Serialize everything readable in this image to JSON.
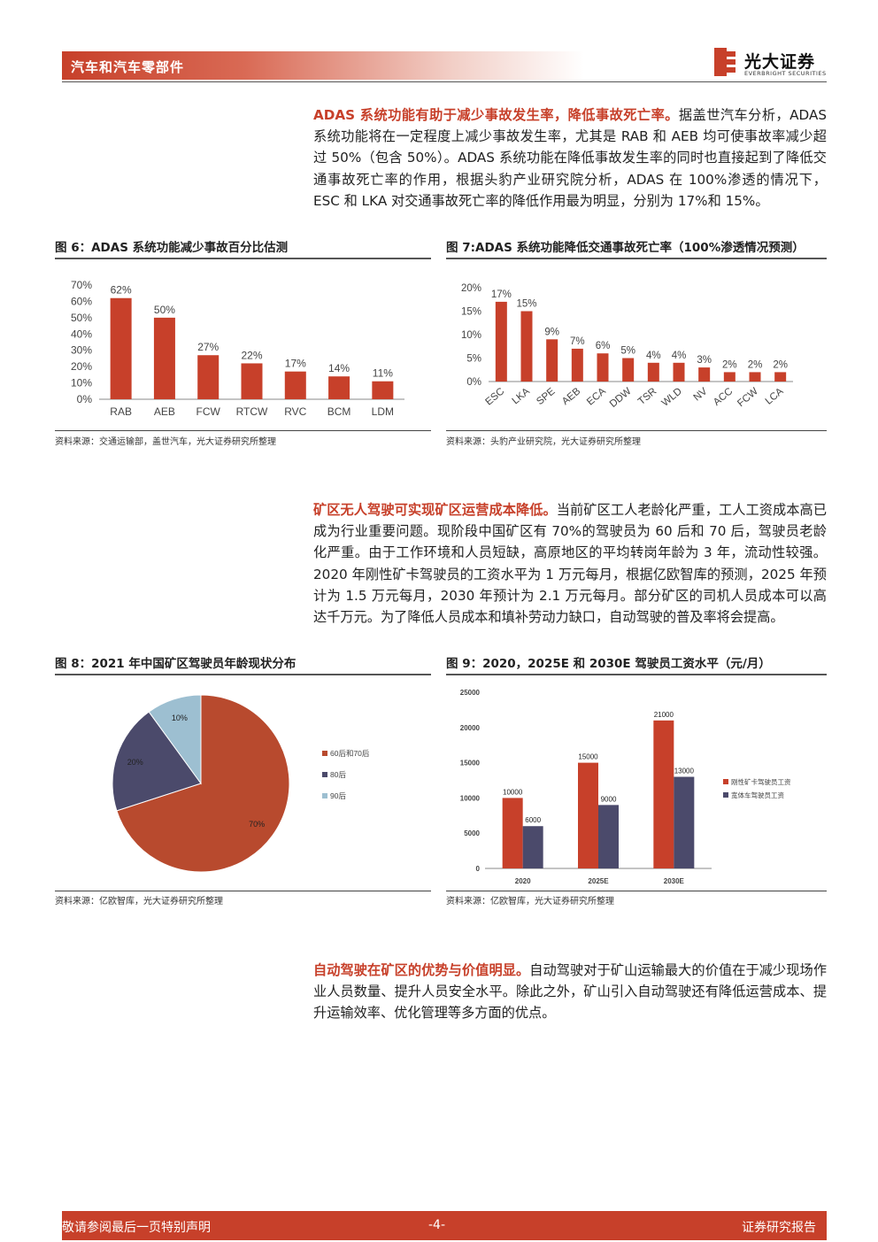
{
  "header": {
    "section": "汽车和汽车零部件",
    "logo_cn": "光大证券",
    "logo_en": "EVERBRIGHT SECURITIES"
  },
  "para1": {
    "highlight": "ADAS 系统功能有助于减少事故发生率，降低事故死亡率。",
    "body": "据盖世汽车分析，ADAS 系统功能将在一定程度上减少事故发生率，尤其是 RAB 和 AEB 均可使事故率减少超过 50%（包含 50%）。ADAS 系统功能在降低事故发生率的同时也直接起到了降低交通事故死亡率的作用，根据头豹产业研究院分析，ADAS 在 100%渗透的情况下，ESC 和 LKA 对交通事故死亡率的降低作用最为明显，分别为 17%和 15%。"
  },
  "fig6": {
    "title": "图 6：ADAS 系统功能减少事故百分比估测",
    "source": "资料来源：交通运输部，盖世汽车，光大证券研究所整理"
  },
  "fig7": {
    "title": "图 7:ADAS 系统功能降低交通事故死亡率（100%渗透情况预测）",
    "source": "资料来源：头豹产业研究院，光大证券研究所整理"
  },
  "para2": {
    "highlight": "矿区无人驾驶可实现矿区运营成本降低。",
    "body": "当前矿区工人老龄化严重，工人工资成本高已成为行业重要问题。现阶段中国矿区有 70%的驾驶员为 60 后和 70 后，驾驶员老龄化严重。由于工作环境和人员短缺，高原地区的平均转岗年龄为 3 年，流动性较强。2020 年刚性矿卡驾驶员的工资水平为 1 万元每月，根据亿欧智库的预测，2025 年预计为 1.5 万元每月，2030 年预计为 2.1 万元每月。部分矿区的司机人员成本可以高达千万元。为了降低人员成本和填补劳动力缺口，自动驾驶的普及率将会提高。"
  },
  "fig8": {
    "title": "图 8：2021 年中国矿区驾驶员年龄现状分布",
    "source": "资料来源：亿欧智库，光大证券研究所整理"
  },
  "fig9": {
    "title": "图 9：2020，2025E 和 2030E 驾驶员工资水平（元/月）",
    "source": "资料来源：亿欧智库，光大证券研究所整理"
  },
  "para3": {
    "highlight": "自动驾驶在矿区的优势与价值明显。",
    "body": "自动驾驶对于矿山运输最大的价值在于减少现场作业人员数量、提升人员安全水平。除此之外，矿山引入自动驾驶还有降低运营成本、提升运输效率、优化管理等多方面的优点。"
  },
  "footer": {
    "left": "敬请参阅最后一页特别声明",
    "center": "-4-",
    "right": "证券研究报告"
  },
  "colors": {
    "accent": "#c7402a",
    "navy": "#4b4a6b",
    "lightblue": "#9dbfd1"
  },
  "chart_data": [
    {
      "id": "fig6",
      "type": "bar",
      "categories": [
        "RAB",
        "AEB",
        "FCW",
        "RTCW",
        "RVC",
        "BCM",
        "LDM"
      ],
      "values": [
        62,
        50,
        27,
        22,
        17,
        14,
        11
      ],
      "value_labels": [
        "62%",
        "50%",
        "27%",
        "22%",
        "17%",
        "14%",
        "11%"
      ],
      "yticks": [
        "0%",
        "10%",
        "20%",
        "30%",
        "40%",
        "50%",
        "60%",
        "70%"
      ],
      "ylim": [
        0,
        70
      ],
      "color": "#c7402a"
    },
    {
      "id": "fig7",
      "type": "bar",
      "categories": [
        "ESC",
        "LKA",
        "SPE",
        "AEB",
        "ECA",
        "DDW",
        "TSR",
        "WLD",
        "NV",
        "ACC",
        "FCW",
        "LCA"
      ],
      "values": [
        17,
        15,
        9,
        7,
        6,
        5,
        4,
        4,
        3,
        2,
        2,
        2
      ],
      "value_labels": [
        "17%",
        "15%",
        "9%",
        "7%",
        "6%",
        "5%",
        "4%",
        "4%",
        "3%",
        "2%",
        "2%",
        "2%"
      ],
      "yticks": [
        "0%",
        "5%",
        "10%",
        "15%",
        "20%"
      ],
      "ylim": [
        0,
        20
      ],
      "color": "#c7402a"
    },
    {
      "id": "fig8",
      "type": "pie",
      "slices": [
        {
          "label": "60后和70后",
          "value": 70,
          "value_label": "70%",
          "color": "#b84a2e"
        },
        {
          "label": "80后",
          "value": 20,
          "value_label": "20%",
          "color": "#4b4a6b"
        },
        {
          "label": "90后",
          "value": 10,
          "value_label": "10%",
          "color": "#9dbfd1"
        }
      ],
      "legend": "right"
    },
    {
      "id": "fig9",
      "type": "bar",
      "categories": [
        "2020",
        "2025E",
        "2030E"
      ],
      "series": [
        {
          "name": "刚性矿卡驾驶员工资",
          "values": [
            10000,
            15000,
            21000
          ],
          "color": "#c7402a"
        },
        {
          "name": "宽体车驾驶员工资",
          "values": [
            6000,
            9000,
            13000
          ],
          "color": "#4b4a6b"
        }
      ],
      "yticks": [
        "0",
        "5000",
        "10000",
        "15000",
        "20000",
        "25000"
      ],
      "ylim": [
        0,
        25000
      ],
      "legend": "right"
    }
  ]
}
